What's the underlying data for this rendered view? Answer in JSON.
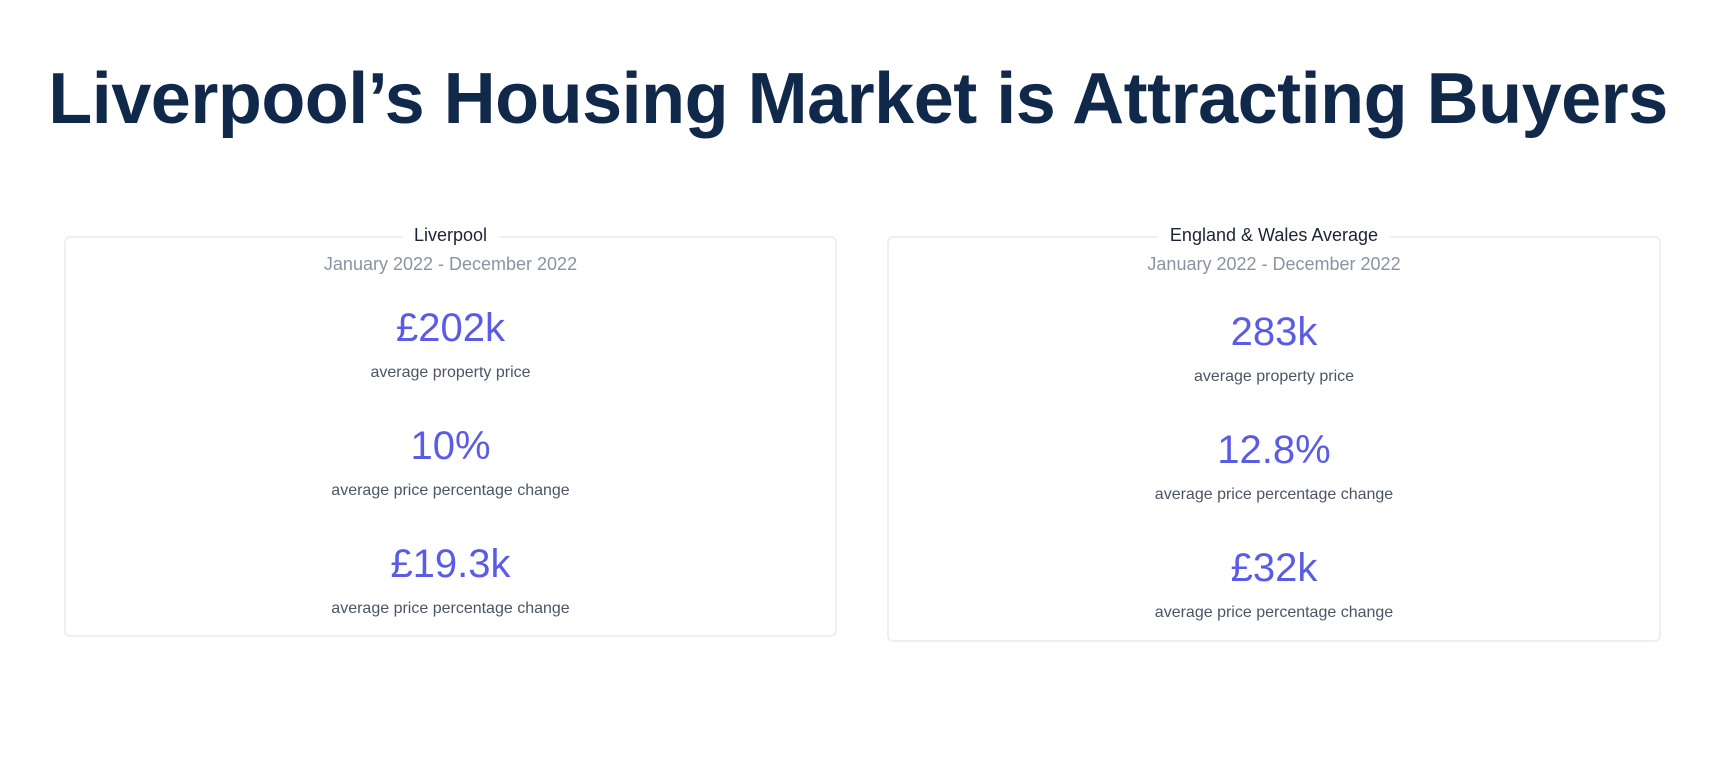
{
  "title": "Liverpool’s Housing Market is Attracting Buyers",
  "cards": [
    {
      "name": "Liverpool",
      "period": "January 2022 - December 2022",
      "stats": [
        {
          "value": "£202k",
          "label": "average property price"
        },
        {
          "value": "10%",
          "label": "average price percentage change"
        },
        {
          "value": "£19.3k",
          "label": "average price percentage change"
        }
      ]
    },
    {
      "name": "England & Wales Average",
      "period": "January 2022 - December 2022",
      "stats": [
        {
          "value": "283k",
          "label": "average property price"
        },
        {
          "value": "12.8%",
          "label": "average price percentage change"
        },
        {
          "value": "£32k",
          "label": "average price percentage change"
        }
      ]
    }
  ],
  "colors": {
    "title": "#10294a",
    "accent": "#5b5ce6"
  }
}
